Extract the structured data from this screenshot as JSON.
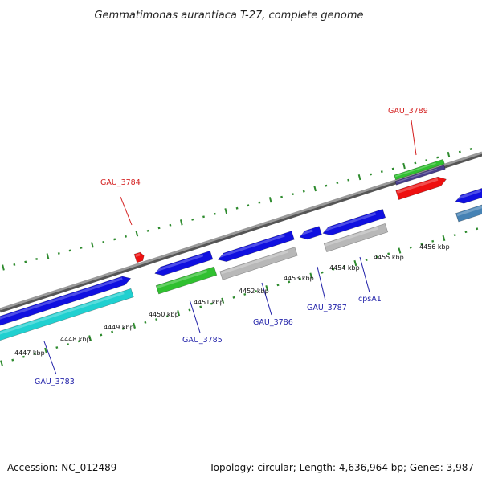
{
  "title": "Gemmatimonas aurantiaca T-27, complete genome",
  "footer": {
    "accession": "Accession: NC_012489",
    "summary": "Topology: circular; Length: 4,636,964 bp; Genes: 3,987"
  },
  "map": {
    "backbone_color": "#8a8a8a",
    "minor_tick_color": "#2e8b2e",
    "tick_labels": [
      "4447 kbp",
      "4448 kbp",
      "4449 kbp",
      "4450 kbp",
      "4451 kbp",
      "4452 kbp",
      "4453 kbp",
      "4454 kbp",
      "4455 kbp",
      "4456 kbp"
    ],
    "gene_labels": [
      {
        "text": "GAU_3783",
        "color": "#1f1fa8"
      },
      {
        "text": "GAU_3784",
        "color": "#d41f1f"
      },
      {
        "text": "GAU_3785",
        "color": "#1f1fa8"
      },
      {
        "text": "GAU_3786",
        "color": "#1f1fa8"
      },
      {
        "text": "GAU_3787",
        "color": "#1f1fa8"
      },
      {
        "text": "cpsA1",
        "color": "#1f1fa8"
      },
      {
        "text": "GAU_3789",
        "color": "#d41f1f"
      }
    ],
    "feature_colors": {
      "blue": "#1010e0",
      "cyan": "#20d0d0",
      "green": "#30c030",
      "gray": "#b8b8b8",
      "red": "#ee1010",
      "steel": "#4682b4",
      "slate": "#483d8b"
    }
  }
}
